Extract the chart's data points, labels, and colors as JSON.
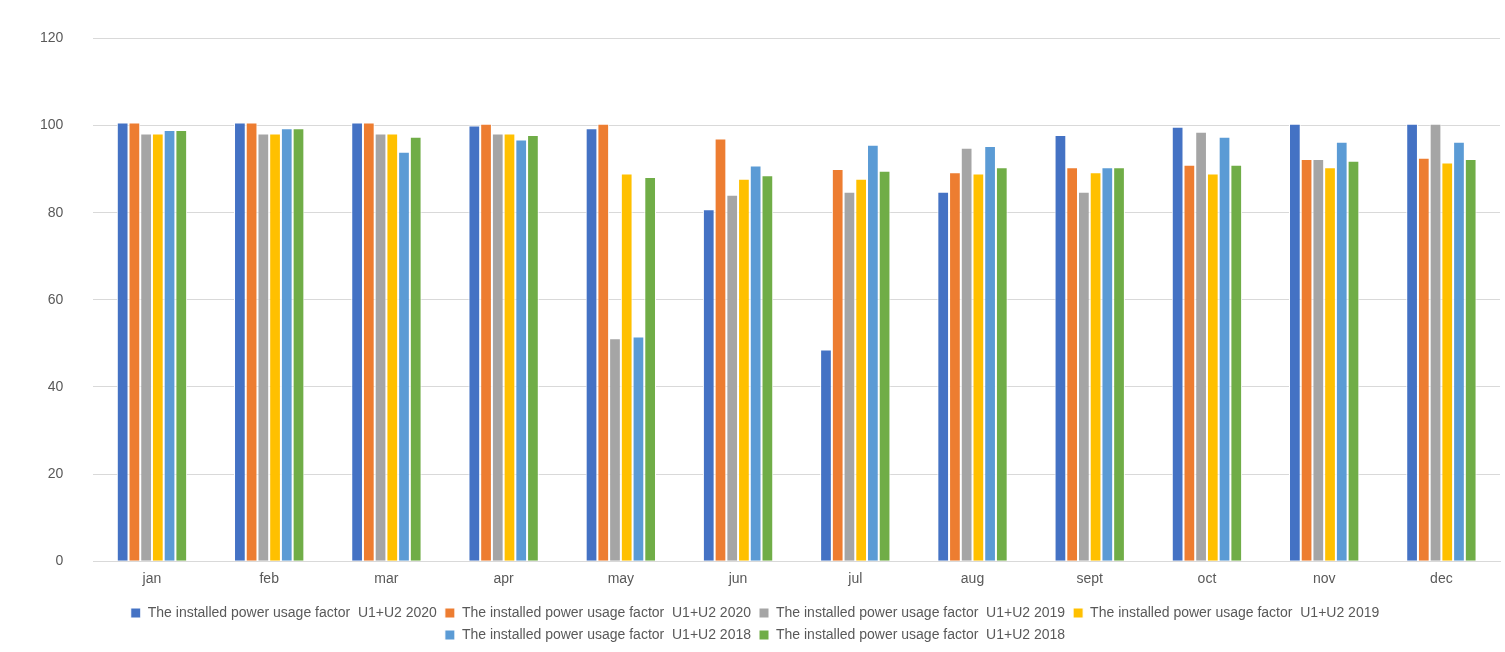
{
  "chart_data": {
    "type": "bar",
    "categories": [
      "jan",
      "feb",
      "mar",
      "apr",
      "may",
      "jun",
      "jul",
      "aug",
      "sept",
      "oct",
      "nov",
      "dec"
    ],
    "series": [
      {
        "name": "The installed power usage factor  U1+U2 2020",
        "color": "#4472c4",
        "values": [
          100.7,
          100.7,
          100.7,
          100,
          99.4,
          80.8,
          48.6,
          84.8,
          97.8,
          99.7,
          100.4,
          100.4
        ]
      },
      {
        "name": "The installed power usage factor  U1+U2 2020",
        "color": "#ed7d31",
        "values": [
          100.7,
          100.7,
          100.7,
          100.4,
          100.4,
          97,
          90,
          89.3,
          90.4,
          91,
          92.3,
          92.6
        ]
      },
      {
        "name": "The installed power usage factor  U1+U2 2019",
        "color": "#a5a5a5",
        "values": [
          98.2,
          98.2,
          98.2,
          98.2,
          51.2,
          84.1,
          84.8,
          94.9,
          84.8,
          98.6,
          92.3,
          100.4
        ]
      },
      {
        "name": "The installed power usage factor  U1+U2 2019",
        "color": "#ffc000",
        "values": [
          98.2,
          98.2,
          98.2,
          98.2,
          89,
          87.8,
          87.8,
          89,
          89.3,
          89,
          90.4,
          91.5
        ]
      },
      {
        "name": "The installed power usage factor  U1+U2 2018",
        "color": "#5b9bd5",
        "values": [
          99,
          99.4,
          94,
          96.8,
          51.6,
          90.8,
          95.6,
          95.3,
          90.4,
          97.4,
          96.3,
          96.3
        ]
      },
      {
        "name": "The installed power usage factor  U1+U2 2018",
        "color": "#70ad47",
        "values": [
          99,
          99.4,
          97.4,
          97.8,
          88.2,
          88.6,
          89.6,
          90.4,
          90.4,
          91,
          91.9,
          92.3
        ]
      }
    ],
    "ylim": [
      0,
      120
    ],
    "yticks": [
      0,
      20,
      40,
      60,
      80,
      100,
      120
    ],
    "grid": "y",
    "legend": "bottom"
  }
}
